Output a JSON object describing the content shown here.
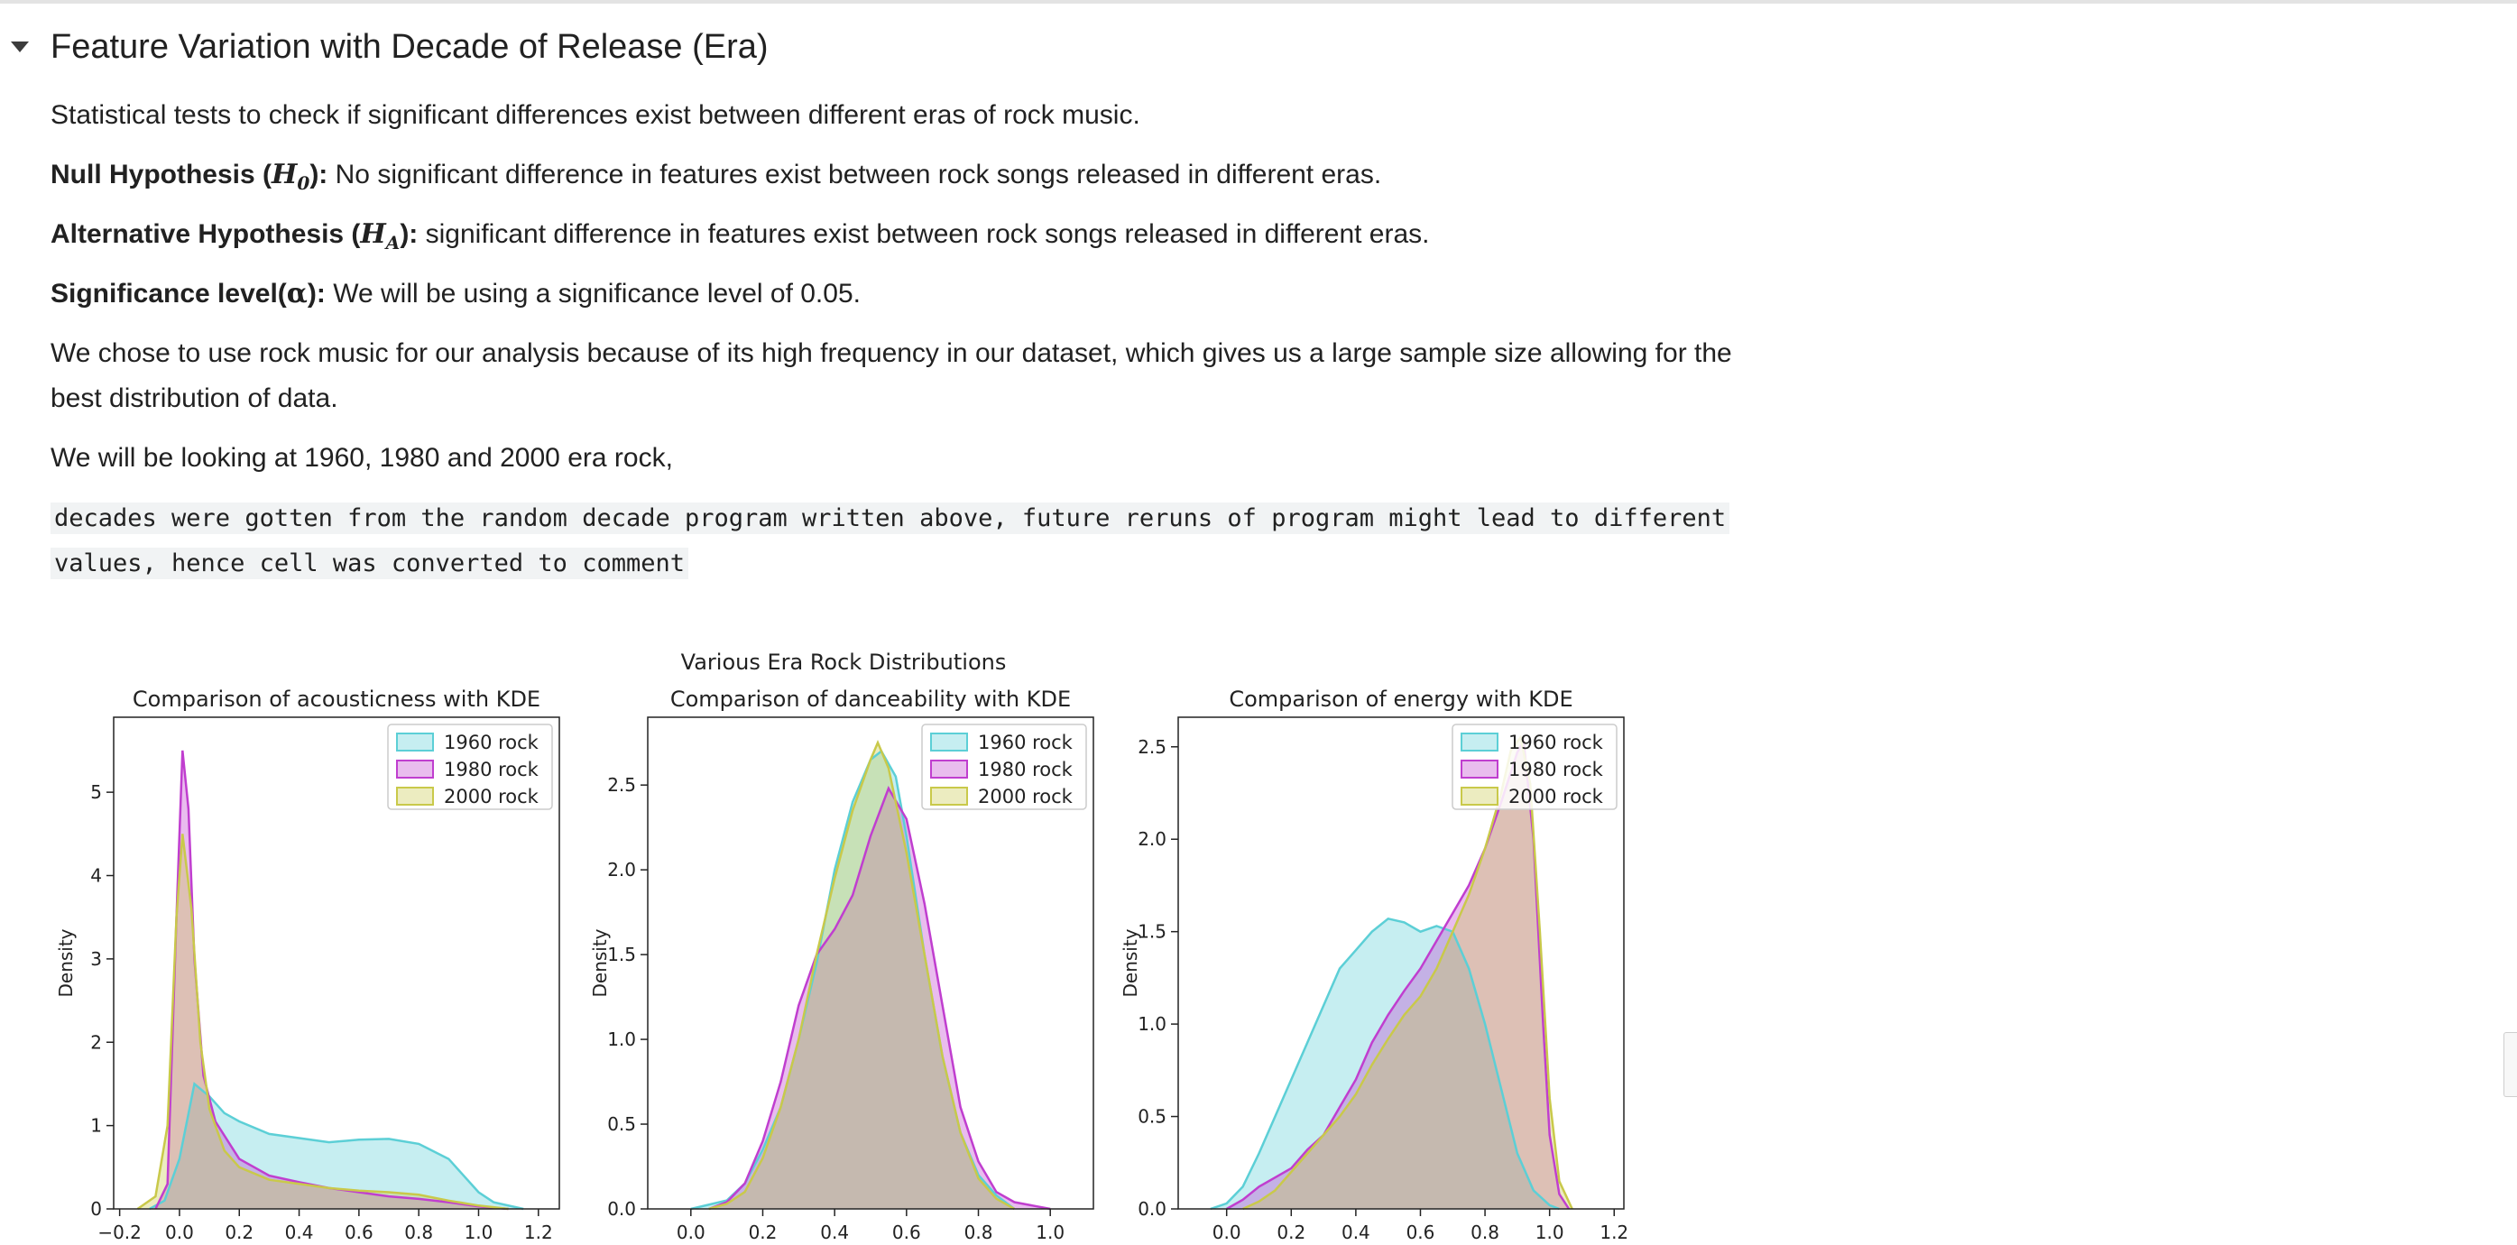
{
  "section": {
    "title": "Feature Variation with Decade of Release (Era)"
  },
  "text": {
    "intro": "Statistical tests to check if significant differences exist between different eras of rock music.",
    "null_label": "Null Hypothesis (",
    "null_math": "H",
    "null_sub": "0",
    "null_close": "):",
    "null_text": " No significant difference in features exist between rock songs released in different eras.",
    "alt_label": "Alternative Hypothesis (",
    "alt_math": "H",
    "alt_sub": "A",
    "alt_close": "):",
    "alt_text": " significant difference in features exist between rock songs released in different eras.",
    "sig_label": "Significance level(",
    "sig_math": "α",
    "sig_close": "):",
    "sig_text": " We will be using a significance level of 0.05.",
    "choice_line1": "We chose to use rock music for our analysis because of its high frequency in our dataset, which gives us a large sample size allowing for the",
    "choice_line2": "best distribution of data.",
    "eras_text": "We will be looking at 1960, 1980 and 2000 era rock,"
  },
  "code": {
    "line1": "decades were gotten from the random decade program written above, future reruns of program might lead to different",
    "line2": "values, hence cell was converted to comment"
  },
  "figure": {
    "suptitle": "Various Era Rock Distributions"
  },
  "colors": {
    "1960 rock": "#5ccfd6",
    "1980 rock": "#c03ecf",
    "2000 rock": "#c9c94a"
  },
  "chart_data": [
    {
      "type": "area",
      "title": "Comparison of acousticness with KDE",
      "xlabel": "",
      "ylabel": "Density",
      "xlim": [
        -0.22,
        1.27
      ],
      "ylim": [
        0,
        5.9
      ],
      "xticks": [
        -0.2,
        0.0,
        0.2,
        0.4,
        0.6,
        0.8,
        1.0,
        1.2
      ],
      "xticklabels": [
        "−0.2",
        "0.0",
        "0.2",
        "0.4",
        "0.6",
        "0.8",
        "1.0",
        "1.2"
      ],
      "yticks": [
        0,
        1,
        2,
        3,
        4,
        5
      ],
      "yticklabels": [
        "0",
        "1",
        "2",
        "3",
        "4",
        "5"
      ],
      "legend_position": "top-right",
      "series": [
        {
          "name": "1960 rock",
          "points": [
            [
              -0.1,
              0
            ],
            [
              -0.05,
              0.1
            ],
            [
              0.0,
              0.6
            ],
            [
              0.05,
              1.5
            ],
            [
              0.1,
              1.35
            ],
            [
              0.15,
              1.15
            ],
            [
              0.2,
              1.05
            ],
            [
              0.3,
              0.9
            ],
            [
              0.4,
              0.85
            ],
            [
              0.5,
              0.8
            ],
            [
              0.6,
              0.83
            ],
            [
              0.7,
              0.84
            ],
            [
              0.8,
              0.78
            ],
            [
              0.9,
              0.6
            ],
            [
              0.95,
              0.4
            ],
            [
              1.0,
              0.2
            ],
            [
              1.05,
              0.08
            ],
            [
              1.15,
              0
            ]
          ]
        },
        {
          "name": "1980 rock",
          "points": [
            [
              -0.08,
              0
            ],
            [
              -0.04,
              0.3
            ],
            [
              -0.01,
              3.5
            ],
            [
              0.01,
              5.5
            ],
            [
              0.03,
              4.8
            ],
            [
              0.05,
              3.0
            ],
            [
              0.08,
              1.6
            ],
            [
              0.12,
              1.05
            ],
            [
              0.2,
              0.6
            ],
            [
              0.3,
              0.4
            ],
            [
              0.4,
              0.32
            ],
            [
              0.5,
              0.25
            ],
            [
              0.6,
              0.2
            ],
            [
              0.7,
              0.15
            ],
            [
              0.8,
              0.12
            ],
            [
              0.9,
              0.08
            ],
            [
              1.0,
              0.03
            ],
            [
              1.1,
              0
            ]
          ]
        },
        {
          "name": "2000 rock",
          "points": [
            [
              -0.14,
              0
            ],
            [
              -0.08,
              0.15
            ],
            [
              -0.04,
              1.0
            ],
            [
              -0.01,
              3.5
            ],
            [
              0.01,
              4.5
            ],
            [
              0.04,
              3.6
            ],
            [
              0.07,
              2.0
            ],
            [
              0.1,
              1.2
            ],
            [
              0.15,
              0.7
            ],
            [
              0.2,
              0.5
            ],
            [
              0.3,
              0.35
            ],
            [
              0.4,
              0.3
            ],
            [
              0.5,
              0.25
            ],
            [
              0.6,
              0.22
            ],
            [
              0.7,
              0.2
            ],
            [
              0.8,
              0.17
            ],
            [
              0.9,
              0.1
            ],
            [
              1.0,
              0.04
            ],
            [
              1.1,
              0
            ]
          ]
        }
      ]
    },
    {
      "type": "area",
      "title": "Comparison of danceability with KDE",
      "xlabel": "",
      "ylabel": "Density",
      "xlim": [
        -0.12,
        1.12
      ],
      "ylim": [
        0,
        2.9
      ],
      "xticks": [
        0.0,
        0.2,
        0.4,
        0.6,
        0.8,
        1.0
      ],
      "xticklabels": [
        "0.0",
        "0.2",
        "0.4",
        "0.6",
        "0.8",
        "1.0"
      ],
      "yticks": [
        0,
        0.5,
        1.0,
        1.5,
        2.0,
        2.5
      ],
      "yticklabels": [
        "0.0",
        "0.5",
        "1.0",
        "1.5",
        "2.0",
        "2.5"
      ],
      "legend_position": "top-right",
      "series": [
        {
          "name": "1960 rock",
          "points": [
            [
              0.0,
              0
            ],
            [
              0.1,
              0.05
            ],
            [
              0.15,
              0.15
            ],
            [
              0.2,
              0.35
            ],
            [
              0.25,
              0.6
            ],
            [
              0.3,
              1.0
            ],
            [
              0.35,
              1.45
            ],
            [
              0.4,
              2.0
            ],
            [
              0.45,
              2.4
            ],
            [
              0.5,
              2.65
            ],
            [
              0.53,
              2.7
            ],
            [
              0.57,
              2.55
            ],
            [
              0.6,
              2.2
            ],
            [
              0.65,
              1.5
            ],
            [
              0.7,
              0.9
            ],
            [
              0.75,
              0.45
            ],
            [
              0.8,
              0.2
            ],
            [
              0.85,
              0.08
            ],
            [
              0.9,
              0
            ]
          ]
        },
        {
          "name": "1980 rock",
          "points": [
            [
              0.05,
              0
            ],
            [
              0.1,
              0.04
            ],
            [
              0.15,
              0.15
            ],
            [
              0.2,
              0.4
            ],
            [
              0.25,
              0.75
            ],
            [
              0.3,
              1.2
            ],
            [
              0.35,
              1.5
            ],
            [
              0.4,
              1.65
            ],
            [
              0.45,
              1.85
            ],
            [
              0.5,
              2.2
            ],
            [
              0.55,
              2.48
            ],
            [
              0.6,
              2.3
            ],
            [
              0.65,
              1.8
            ],
            [
              0.7,
              1.2
            ],
            [
              0.75,
              0.6
            ],
            [
              0.8,
              0.28
            ],
            [
              0.85,
              0.1
            ],
            [
              0.9,
              0.04
            ],
            [
              1.0,
              0
            ]
          ]
        },
        {
          "name": "2000 rock",
          "points": [
            [
              0.05,
              0
            ],
            [
              0.1,
              0.03
            ],
            [
              0.15,
              0.1
            ],
            [
              0.2,
              0.3
            ],
            [
              0.25,
              0.6
            ],
            [
              0.3,
              1.0
            ],
            [
              0.35,
              1.5
            ],
            [
              0.4,
              1.95
            ],
            [
              0.45,
              2.35
            ],
            [
              0.5,
              2.65
            ],
            [
              0.52,
              2.75
            ],
            [
              0.55,
              2.6
            ],
            [
              0.6,
              2.1
            ],
            [
              0.65,
              1.5
            ],
            [
              0.7,
              0.9
            ],
            [
              0.75,
              0.45
            ],
            [
              0.8,
              0.18
            ],
            [
              0.85,
              0.06
            ],
            [
              0.9,
              0
            ]
          ]
        }
      ]
    },
    {
      "type": "area",
      "title": "Comparison of energy with KDE",
      "xlabel": "",
      "ylabel": "Density",
      "xlim": [
        -0.15,
        1.23
      ],
      "ylim": [
        0,
        2.66
      ],
      "xticks": [
        0.0,
        0.2,
        0.4,
        0.6,
        0.8,
        1.0,
        1.2
      ],
      "xticklabels": [
        "0.0",
        "0.2",
        "0.4",
        "0.6",
        "0.8",
        "1.0",
        "1.2"
      ],
      "yticks": [
        0,
        0.5,
        1.0,
        1.5,
        2.0,
        2.5
      ],
      "yticklabels": [
        "0.0",
        "0.5",
        "1.0",
        "1.5",
        "2.0",
        "2.5"
      ],
      "legend_position": "top-right",
      "series": [
        {
          "name": "1960 rock",
          "points": [
            [
              -0.05,
              0
            ],
            [
              0.0,
              0.03
            ],
            [
              0.05,
              0.12
            ],
            [
              0.1,
              0.3
            ],
            [
              0.15,
              0.5
            ],
            [
              0.2,
              0.7
            ],
            [
              0.25,
              0.9
            ],
            [
              0.3,
              1.1
            ],
            [
              0.35,
              1.3
            ],
            [
              0.4,
              1.4
            ],
            [
              0.45,
              1.5
            ],
            [
              0.5,
              1.57
            ],
            [
              0.55,
              1.55
            ],
            [
              0.6,
              1.5
            ],
            [
              0.65,
              1.53
            ],
            [
              0.7,
              1.5
            ],
            [
              0.75,
              1.3
            ],
            [
              0.8,
              1.0
            ],
            [
              0.85,
              0.65
            ],
            [
              0.9,
              0.3
            ],
            [
              0.95,
              0.1
            ],
            [
              1.0,
              0.02
            ],
            [
              1.03,
              0
            ]
          ]
        },
        {
          "name": "1980 rock",
          "points": [
            [
              0.0,
              0
            ],
            [
              0.05,
              0.05
            ],
            [
              0.1,
              0.12
            ],
            [
              0.15,
              0.17
            ],
            [
              0.2,
              0.22
            ],
            [
              0.25,
              0.32
            ],
            [
              0.3,
              0.4
            ],
            [
              0.35,
              0.55
            ],
            [
              0.4,
              0.7
            ],
            [
              0.45,
              0.9
            ],
            [
              0.5,
              1.05
            ],
            [
              0.55,
              1.18
            ],
            [
              0.6,
              1.3
            ],
            [
              0.65,
              1.45
            ],
            [
              0.7,
              1.6
            ],
            [
              0.75,
              1.75
            ],
            [
              0.8,
              1.95
            ],
            [
              0.85,
              2.2
            ],
            [
              0.9,
              2.47
            ],
            [
              0.92,
              2.53
            ],
            [
              0.95,
              2.0
            ],
            [
              0.98,
              1.0
            ],
            [
              1.0,
              0.4
            ],
            [
              1.03,
              0.08
            ],
            [
              1.06,
              0
            ]
          ]
        },
        {
          "name": "2000 rock",
          "points": [
            [
              0.05,
              0
            ],
            [
              0.1,
              0.04
            ],
            [
              0.15,
              0.1
            ],
            [
              0.2,
              0.2
            ],
            [
              0.25,
              0.3
            ],
            [
              0.3,
              0.4
            ],
            [
              0.35,
              0.5
            ],
            [
              0.4,
              0.62
            ],
            [
              0.45,
              0.78
            ],
            [
              0.5,
              0.92
            ],
            [
              0.55,
              1.05
            ],
            [
              0.6,
              1.15
            ],
            [
              0.65,
              1.3
            ],
            [
              0.7,
              1.5
            ],
            [
              0.75,
              1.7
            ],
            [
              0.8,
              1.95
            ],
            [
              0.85,
              2.25
            ],
            [
              0.88,
              2.48
            ],
            [
              0.91,
              2.55
            ],
            [
              0.94,
              2.3
            ],
            [
              0.97,
              1.5
            ],
            [
              1.0,
              0.6
            ],
            [
              1.03,
              0.15
            ],
            [
              1.07,
              0
            ]
          ]
        }
      ]
    }
  ]
}
